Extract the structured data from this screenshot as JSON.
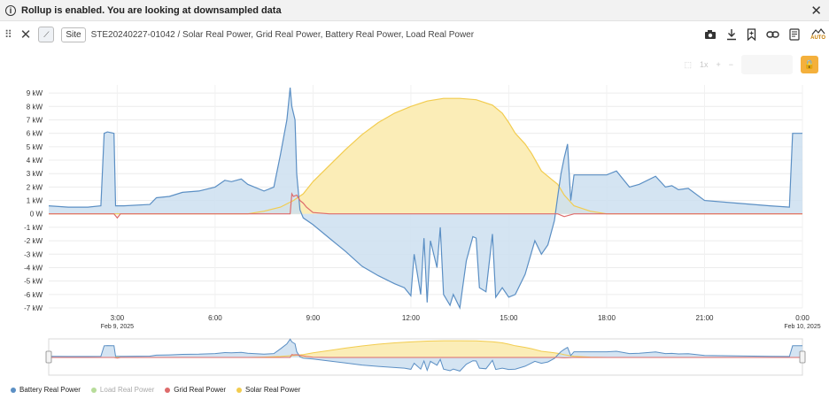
{
  "banner": {
    "icon": "info-icon",
    "text": "Rollup is enabled. You are looking at downsampled data"
  },
  "toolbar": {
    "site_label": "Site",
    "breadcrumb": "STE20240227-01042 / Solar Real Power, Grid Real Power, Battery Real Power, Load Real Power",
    "auto_label": "AUTO",
    "right_icons": [
      "camera-icon",
      "download-icon",
      "bookmark-icon",
      "link-icon",
      "notes-icon",
      "auto-mode-icon"
    ]
  },
  "colors": {
    "battery": "#5b8fc4",
    "battery_fill": "#cddff0",
    "load": "#b7dc9a",
    "grid": "#de6b6b",
    "solar": "#f2cc4f",
    "solar_fill": "#fbedb7",
    "accent": "#f4b03c"
  },
  "chart_data": {
    "type": "area",
    "ylabel": "",
    "xlabel": "",
    "ylim": [
      -7,
      9.6
    ],
    "yticks": [
      "9 kW",
      "8 kW",
      "7 kW",
      "6 kW",
      "5 kW",
      "4 kW",
      "3 kW",
      "2 kW",
      "1 kW",
      "0 W",
      "-1 kW",
      "-2 kW",
      "-3 kW",
      "-4 kW",
      "-5 kW",
      "-6 kW",
      "-7 kW"
    ],
    "xlim": [
      0.9,
      24.0
    ],
    "xticks": [
      {
        "x": 3,
        "label": "3:00",
        "sub": "Feb 9, 2025"
      },
      {
        "x": 6,
        "label": "6:00",
        "sub": ""
      },
      {
        "x": 9,
        "label": "9:00",
        "sub": ""
      },
      {
        "x": 12,
        "label": "12:00",
        "sub": ""
      },
      {
        "x": 15,
        "label": "15:00",
        "sub": ""
      },
      {
        "x": 18,
        "label": "18:00",
        "sub": ""
      },
      {
        "x": 21,
        "label": "21:00",
        "sub": ""
      },
      {
        "x": 24,
        "label": "0:00",
        "sub": "Feb 10, 2025"
      }
    ],
    "series": [
      {
        "name": "Battery Real Power",
        "key": "battery",
        "unit": "kW",
        "x": [
          0.9,
          1.5,
          2.0,
          2.1,
          2.5,
          2.6,
          2.7,
          2.9,
          2.95,
          3.2,
          4.0,
          4.2,
          4.6,
          5.0,
          5.5,
          6.0,
          6.3,
          6.5,
          6.8,
          7.0,
          7.5,
          7.8,
          8.0,
          8.2,
          8.3,
          8.35,
          8.4,
          8.45,
          8.5,
          8.6,
          8.7,
          9.0,
          9.5,
          10.0,
          10.5,
          11.0,
          11.5,
          11.8,
          12.0,
          12.1,
          12.3,
          12.4,
          12.5,
          12.6,
          12.8,
          12.9,
          13.0,
          13.2,
          13.3,
          13.5,
          13.7,
          13.9,
          14.0,
          14.1,
          14.3,
          14.5,
          14.6,
          14.8,
          15.0,
          15.2,
          15.5,
          15.8,
          16.0,
          16.2,
          16.4,
          16.5,
          16.6,
          16.7,
          16.8,
          16.9,
          17.0,
          17.5,
          18.0,
          18.3,
          18.7,
          19.0,
          19.5,
          19.8,
          20.0,
          20.2,
          20.5,
          21.0,
          22.0,
          23.0,
          23.6,
          23.7,
          24.0
        ],
        "y": [
          0.6,
          0.5,
          0.5,
          0.5,
          0.6,
          6.0,
          6.1,
          6.0,
          0.6,
          0.6,
          0.7,
          1.2,
          1.3,
          1.6,
          1.7,
          2.0,
          2.5,
          2.4,
          2.6,
          2.2,
          1.7,
          2.0,
          4.4,
          7.0,
          9.4,
          8.0,
          7.5,
          7.0,
          3.0,
          0.3,
          -0.3,
          -0.8,
          -1.8,
          -2.8,
          -3.9,
          -4.6,
          -5.2,
          -5.5,
          -6.1,
          -3.0,
          -6.0,
          -1.8,
          -6.6,
          -2.0,
          -4.0,
          -1.0,
          -6.0,
          -6.8,
          -6.0,
          -7.0,
          -3.5,
          -1.7,
          -1.8,
          -5.5,
          -5.8,
          -1.5,
          -6.2,
          -5.5,
          -6.2,
          -6.0,
          -4.5,
          -2.0,
          -3.0,
          -2.3,
          -0.5,
          1.3,
          3.0,
          4.2,
          5.2,
          1.0,
          2.9,
          2.9,
          2.9,
          3.2,
          2.0,
          2.2,
          2.8,
          2.0,
          2.1,
          1.8,
          1.9,
          1.0,
          0.8,
          0.6,
          0.5,
          6.0,
          6.0
        ]
      },
      {
        "name": "Load Real Power",
        "key": "load",
        "unit": "kW",
        "x": [],
        "y": []
      },
      {
        "name": "Grid Real Power",
        "key": "grid",
        "unit": "kW",
        "x": [
          0.9,
          2.9,
          3.0,
          3.1,
          8.3,
          8.35,
          8.4,
          8.5,
          8.6,
          8.7,
          8.8,
          9.0,
          9.5,
          16.5,
          16.7,
          17.0,
          24.0
        ],
        "y": [
          0.0,
          0.0,
          -0.3,
          0.0,
          0.0,
          1.5,
          1.3,
          1.4,
          1.0,
          0.8,
          0.5,
          0.1,
          0.0,
          0.0,
          -0.2,
          0.0,
          0.0
        ]
      },
      {
        "name": "Solar Real Power",
        "key": "solar",
        "unit": "kW",
        "x": [
          0.9,
          7.0,
          7.5,
          8.0,
          8.4,
          8.7,
          9.0,
          9.5,
          10.0,
          10.5,
          11.0,
          11.5,
          12.0,
          12.5,
          13.0,
          13.5,
          14.0,
          14.5,
          14.8,
          15.0,
          15.2,
          15.5,
          15.7,
          16.0,
          16.3,
          16.5,
          16.7,
          17.0,
          17.5,
          18.0,
          24.0
        ],
        "y": [
          0.0,
          0.0,
          0.2,
          0.5,
          1.0,
          1.5,
          2.4,
          3.6,
          4.8,
          5.9,
          6.8,
          7.5,
          8.0,
          8.4,
          8.6,
          8.6,
          8.5,
          8.1,
          7.5,
          6.8,
          6.0,
          5.2,
          4.5,
          3.2,
          2.6,
          2.2,
          1.4,
          0.6,
          0.2,
          0.0,
          0.0
        ]
      }
    ],
    "legend": [
      "Battery Real Power",
      "Load Real Power",
      "Grid Real Power",
      "Solar Real Power"
    ],
    "legend_position": "bottom-left",
    "grid": true,
    "navigator": true
  },
  "toolbar_faded": [
    "1x",
    "+",
    "−"
  ]
}
